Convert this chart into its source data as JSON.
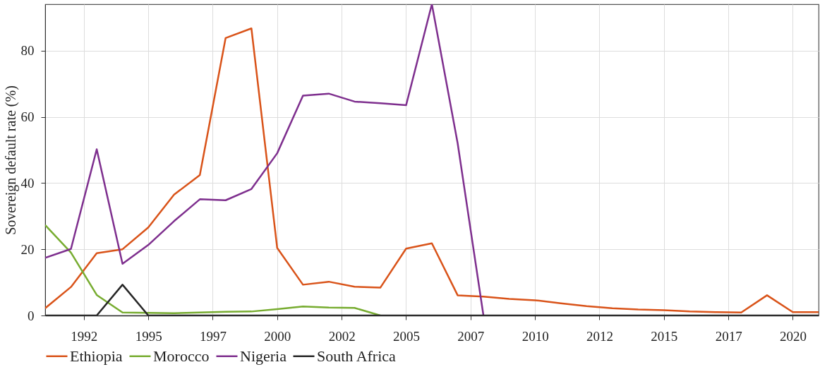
{
  "chart_data": {
    "type": "line",
    "ylabel": "Sovereign default rate (%)",
    "x": [
      1991,
      1992,
      1993,
      1994,
      1995,
      1996,
      1997,
      1998,
      1999,
      2000,
      2001,
      2002,
      2003,
      2004,
      2005,
      2006,
      2007,
      2008,
      2009,
      2010,
      2011,
      2012,
      2013,
      2014,
      2015,
      2016,
      2017,
      2018,
      2019,
      2020,
      2021
    ],
    "series": [
      {
        "name": "Ethiopia",
        "color": "#d95319",
        "values": [
          2.2,
          8.6,
          18.8,
          20.0,
          26.6,
          36.5,
          42.4,
          83.8,
          86.7,
          20.4,
          9.3,
          10.2,
          8.7,
          8.4,
          20.2,
          21.8,
          6.1,
          5.7,
          5.0,
          4.6,
          3.7,
          2.8,
          2.2,
          1.8,
          1.6,
          1.2,
          1.0,
          0.9,
          6.1,
          1.0,
          1.0
        ]
      },
      {
        "name": "Morocco",
        "color": "#77ac30",
        "values": [
          27.3,
          19.0,
          6.2,
          0.9,
          0.8,
          0.7,
          0.9,
          1.1,
          1.2,
          1.9,
          2.7,
          2.4,
          2.3,
          0,
          null,
          null,
          null,
          null,
          null,
          null,
          null,
          null,
          null,
          null,
          null,
          null,
          null,
          null,
          null,
          null,
          null
        ]
      },
      {
        "name": "Nigeria",
        "color": "#7e2f8e",
        "values": [
          17.4,
          20.1,
          50.2,
          15.6,
          21.3,
          28.5,
          35.1,
          34.8,
          38.2,
          49.0,
          66.4,
          67.0,
          64.6,
          64.1,
          63.5,
          94,
          52,
          0,
          null,
          null,
          null,
          null,
          null,
          null,
          null,
          null,
          null,
          null,
          null,
          null,
          null
        ]
      },
      {
        "name": "South Africa",
        "color": "#262626",
        "values": [
          0,
          0,
          0,
          9.3,
          0,
          0,
          0,
          0,
          0,
          0,
          0,
          0,
          0,
          0,
          0,
          0,
          0,
          0,
          0,
          0,
          0,
          0,
          0,
          0,
          0,
          0,
          0,
          0,
          0,
          0,
          0
        ]
      }
    ],
    "xlim": [
      1991,
      2021
    ],
    "xticks": [
      {
        "value": 1992.5,
        "label": "1992"
      },
      1995,
      {
        "value": 1997.5,
        "label": "1997"
      },
      2000,
      {
        "value": 2002.5,
        "label": "2002"
      },
      2005,
      {
        "value": 2007.5,
        "label": "2007"
      },
      2010,
      {
        "value": 2012.5,
        "label": "2012"
      },
      2015,
      {
        "value": 2017.5,
        "label": "2017"
      },
      2020
    ],
    "ylim": [
      0,
      94
    ],
    "yticks": [
      0,
      20,
      40,
      60,
      80
    ],
    "grid": true,
    "legend": "bottom",
    "line_style": "solid",
    "marker": "none"
  }
}
